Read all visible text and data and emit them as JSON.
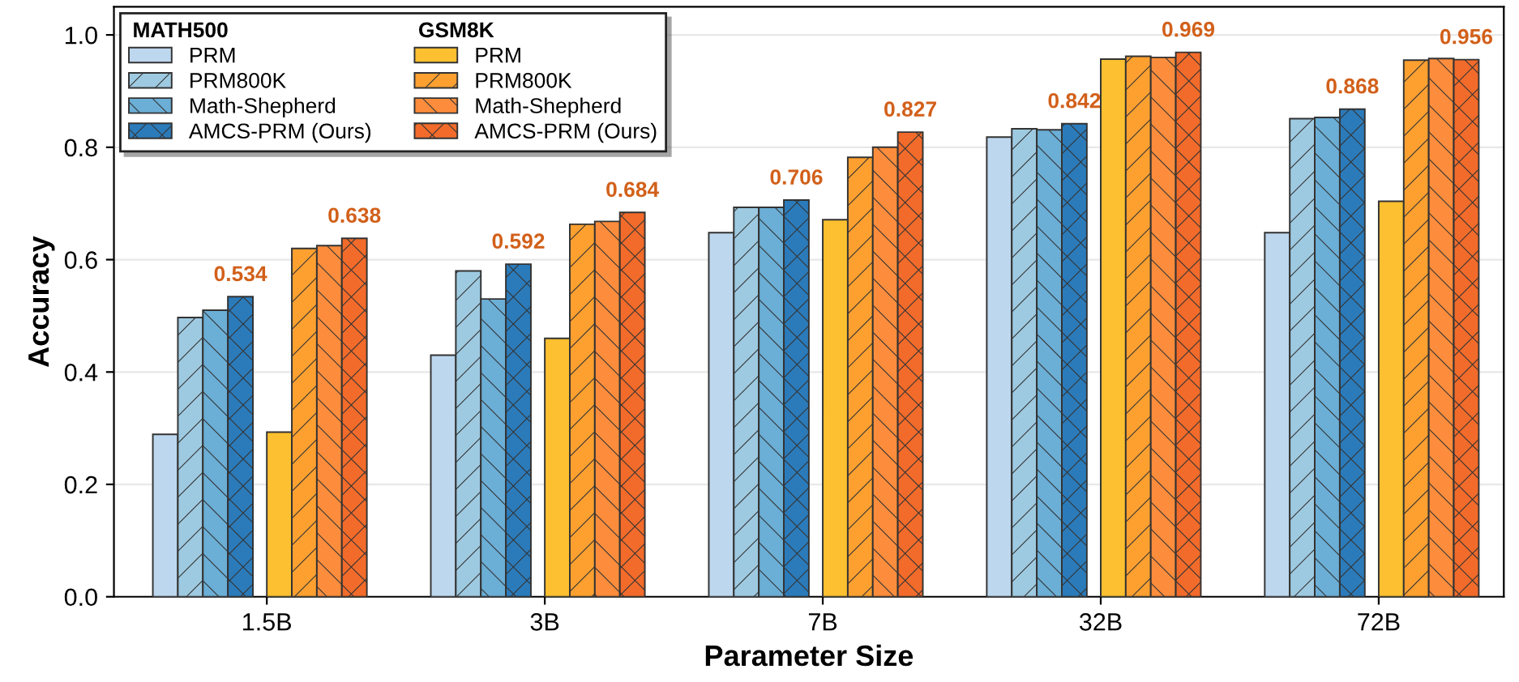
{
  "chart_data": {
    "type": "bar",
    "xlabel": "Parameter Size",
    "ylabel": "Accuracy",
    "categories": [
      "1.5B",
      "3B",
      "7B",
      "32B",
      "72B"
    ],
    "legend_title": [
      "MATH500",
      "GSM8K"
    ],
    "series": [
      {
        "name": "PRM",
        "color": "#bdd7ee",
        "values": [
          0.289,
          0.43,
          0.648,
          0.818,
          0.648
        ]
      },
      {
        "name": "PRM800K",
        "color": "#9ecae1",
        "values": [
          0.497,
          0.58,
          0.693,
          0.833,
          0.851
        ]
      },
      {
        "name": "Math-Shepherd",
        "color": "#6baed6",
        "values": [
          0.51,
          0.53,
          0.693,
          0.831,
          0.853
        ]
      },
      {
        "name": "AMCS-PRM (Ours)",
        "color": "#2b7bba",
        "values": [
          0.534,
          0.592,
          0.706,
          0.842,
          0.868
        ],
        "value_labels": [
          "0.534",
          "0.592",
          "0.706",
          "0.842",
          "0.868"
        ]
      },
      {
        "name": "PRM",
        "color": "#fdc030",
        "values": [
          0.293,
          0.46,
          0.671,
          0.957,
          0.704
        ]
      },
      {
        "name": "PRM800K",
        "color": "#fda030",
        "values": [
          0.62,
          0.663,
          0.782,
          0.962,
          0.955
        ]
      },
      {
        "name": "Math-Shepherd",
        "color": "#fd8d3c",
        "values": [
          0.625,
          0.668,
          0.8,
          0.96,
          0.958
        ]
      },
      {
        "name": "AMCS-PRM (Ours)",
        "color": "#f26b2a",
        "values": [
          0.638,
          0.684,
          0.827,
          0.969,
          0.956
        ],
        "value_labels": [
          "0.638",
          "0.684",
          "0.827",
          "0.969",
          "0.956"
        ]
      }
    ],
    "ylim": [
      0,
      1.05
    ],
    "yticks": [
      {
        "value": 0,
        "label": "0.0"
      },
      {
        "value": 0.2,
        "label": "0.2"
      },
      {
        "value": 0.4,
        "label": "0.4"
      },
      {
        "value": 0.6,
        "label": "0.6"
      },
      {
        "value": 0.8,
        "label": "0.8"
      },
      {
        "value": 1,
        "label": "1.0"
      }
    ],
    "grid": "y",
    "legend": "top left"
  }
}
